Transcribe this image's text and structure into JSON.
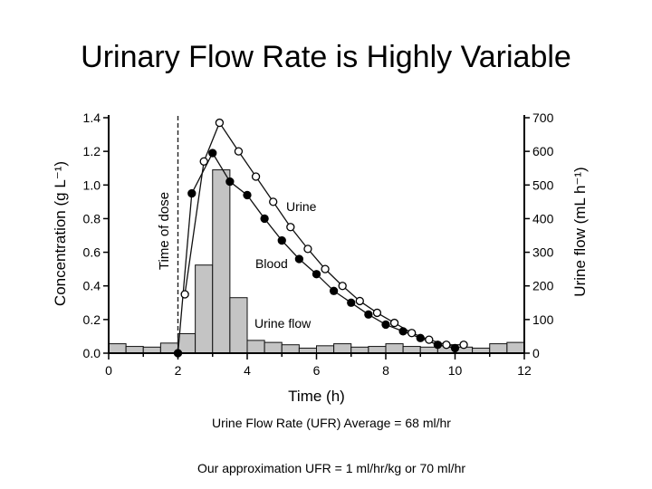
{
  "slide": {
    "title": "Urinary Flow Rate is Highly Variable",
    "note_1": "Urine Flow Rate (UFR) Average = 68 ml/hr",
    "note_2": "Our approximation UFR = 1 ml/hr/kg or 70 ml/hr"
  },
  "chart_data": {
    "type": "bar+line",
    "xlabel": "Time (h)",
    "ylabel": "Concentration (g L⁻¹)",
    "y2label": "Urine flow (mL h⁻¹)",
    "xlim": [
      0,
      12
    ],
    "ylim": [
      0,
      1.4
    ],
    "y2lim": [
      0,
      700
    ],
    "xticks": [
      0,
      2,
      4,
      6,
      8,
      10,
      12
    ],
    "yticks": [
      0.0,
      0.2,
      0.4,
      0.6,
      0.8,
      1.0,
      1.2,
      1.4
    ],
    "y2ticks": [
      0,
      100,
      200,
      300,
      400,
      500,
      600,
      700
    ],
    "xtick_labels": [
      "0",
      "2",
      "4",
      "6",
      "8",
      "10",
      "12"
    ],
    "ytick_labels": [
      "0.0",
      "0.2",
      "0.4",
      "0.6",
      "0.8",
      "1.0",
      "1.2",
      "1.4"
    ],
    "y2tick_labels": [
      "0",
      "100",
      "200",
      "300",
      "400",
      "500",
      "600",
      "700"
    ],
    "dose_time": 2,
    "dose_label": "Time of dose",
    "urine_flow": {
      "name": "Urine flow",
      "bin_width": 0.5,
      "bin_starts": [
        0,
        0.5,
        1,
        1.5,
        2,
        2.5,
        3,
        3.5,
        4,
        4.5,
        5,
        5.5,
        6,
        6.5,
        7,
        7.5,
        8,
        8.5,
        9,
        9.5,
        10,
        10.5,
        11,
        11.5
      ],
      "values": [
        28,
        20,
        18,
        30,
        58,
        262,
        545,
        165,
        38,
        32,
        25,
        15,
        22,
        28,
        18,
        20,
        28,
        20,
        18,
        22,
        18,
        15,
        28,
        32
      ]
    },
    "series": [
      {
        "name": "Urine",
        "marker": "open-circle",
        "x": [
          2.2,
          2.75,
          3.2,
          3.75,
          4.25,
          4.75,
          5.25,
          5.75,
          6.25,
          6.75,
          7.25,
          7.75,
          8.25,
          8.75,
          9.25,
          9.75,
          10.25
        ],
        "y": [
          0.35,
          1.14,
          1.37,
          1.2,
          1.05,
          0.9,
          0.75,
          0.62,
          0.5,
          0.4,
          0.31,
          0.24,
          0.18,
          0.12,
          0.08,
          0.05,
          0.05
        ]
      },
      {
        "name": "Blood",
        "marker": "filled-circle",
        "x": [
          2,
          2.4,
          3,
          3.5,
          4,
          4.5,
          5,
          5.5,
          6,
          6.5,
          7,
          7.5,
          8,
          8.5,
          9,
          9.5,
          10
        ],
        "y": [
          0.0,
          0.95,
          1.19,
          1.02,
          0.94,
          0.8,
          0.67,
          0.56,
          0.47,
          0.37,
          0.3,
          0.23,
          0.17,
          0.13,
          0.09,
          0.05,
          0.03
        ]
      }
    ]
  }
}
